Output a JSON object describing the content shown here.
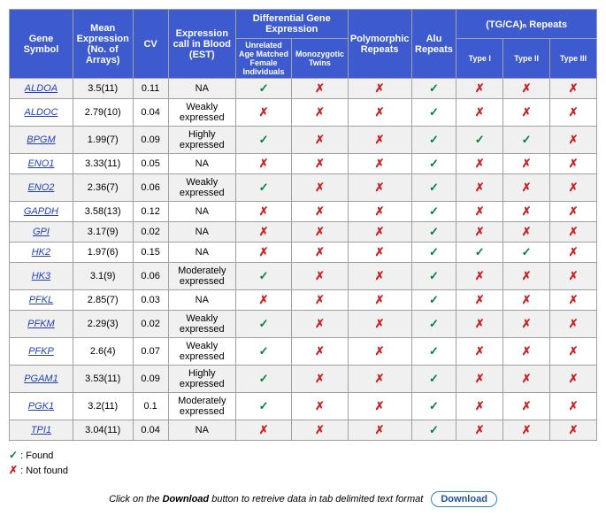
{
  "colors": {
    "header_bg": "#3d5bce",
    "header_text": "#ffffff",
    "border": "#a0a0a0",
    "row_odd": "#f0f0f0",
    "row_even": "#ffffff",
    "link": "#2040c0",
    "check": "#008040",
    "cross": "#cc2020"
  },
  "marks": {
    "found": "✓",
    "not_found": "✗"
  },
  "headers": {
    "gene": "Gene Symbol",
    "mean": "Mean Expression (No. of Arrays)",
    "cv": "CV",
    "expr_call": "Expression call in Blood (EST)",
    "diff_group": "Differential Gene Expression",
    "diff_unrelated": "Unrelated Age Matched Female Individuals",
    "diff_mono": "Monozygotic Twins",
    "poly": "Polymorphic Repeats",
    "alu": "Alu Repeats",
    "tgca_group": "(TG/CA)ₙ Repeats",
    "type1": "Type I",
    "type2": "Type II",
    "type3": "Type III"
  },
  "rows": [
    {
      "gene": "ALDOA",
      "mean": "3.5(11)",
      "cv": "0.11",
      "call": "NA",
      "d1": "y",
      "d2": "n",
      "poly": "n",
      "alu": "y",
      "t1": "n",
      "t2": "n",
      "t3": "n"
    },
    {
      "gene": "ALDOC",
      "mean": "2.79(10)",
      "cv": "0.04",
      "call": "Weakly expressed",
      "d1": "n",
      "d2": "n",
      "poly": "n",
      "alu": "y",
      "t1": "n",
      "t2": "n",
      "t3": "n"
    },
    {
      "gene": "BPGM",
      "mean": "1.99(7)",
      "cv": "0.09",
      "call": "Highly expressed",
      "d1": "y",
      "d2": "n",
      "poly": "n",
      "alu": "y",
      "t1": "y",
      "t2": "y",
      "t3": "n"
    },
    {
      "gene": "ENO1",
      "mean": "3.33(11)",
      "cv": "0.05",
      "call": "NA",
      "d1": "n",
      "d2": "n",
      "poly": "n",
      "alu": "y",
      "t1": "n",
      "t2": "n",
      "t3": "n"
    },
    {
      "gene": "ENO2",
      "mean": "2.36(7)",
      "cv": "0.06",
      "call": "Weakly expressed",
      "d1": "y",
      "d2": "n",
      "poly": "n",
      "alu": "y",
      "t1": "n",
      "t2": "n",
      "t3": "n"
    },
    {
      "gene": "GAPDH",
      "mean": "3.58(13)",
      "cv": "0.12",
      "call": "NA",
      "d1": "n",
      "d2": "n",
      "poly": "n",
      "alu": "y",
      "t1": "n",
      "t2": "n",
      "t3": "n"
    },
    {
      "gene": "GPI",
      "mean": "3.17(9)",
      "cv": "0.02",
      "call": "NA",
      "d1": "n",
      "d2": "n",
      "poly": "n",
      "alu": "y",
      "t1": "n",
      "t2": "n",
      "t3": "n"
    },
    {
      "gene": "HK2",
      "mean": "1.97(6)",
      "cv": "0.15",
      "call": "NA",
      "d1": "n",
      "d2": "n",
      "poly": "n",
      "alu": "y",
      "t1": "y",
      "t2": "y",
      "t3": "n"
    },
    {
      "gene": "HK3",
      "mean": "3.1(9)",
      "cv": "0.06",
      "call": "Moderately expressed",
      "d1": "y",
      "d2": "n",
      "poly": "n",
      "alu": "y",
      "t1": "n",
      "t2": "n",
      "t3": "n"
    },
    {
      "gene": "PFKL",
      "mean": "2.85(7)",
      "cv": "0.03",
      "call": "NA",
      "d1": "n",
      "d2": "n",
      "poly": "n",
      "alu": "y",
      "t1": "n",
      "t2": "n",
      "t3": "n"
    },
    {
      "gene": "PFKM",
      "mean": "2.29(3)",
      "cv": "0.02",
      "call": "Weakly expressed",
      "d1": "y",
      "d2": "n",
      "poly": "n",
      "alu": "y",
      "t1": "n",
      "t2": "n",
      "t3": "n"
    },
    {
      "gene": "PFKP",
      "mean": "2.6(4)",
      "cv": "0.07",
      "call": "Weakly expressed",
      "d1": "y",
      "d2": "n",
      "poly": "n",
      "alu": "y",
      "t1": "n",
      "t2": "n",
      "t3": "n"
    },
    {
      "gene": "PGAM1",
      "mean": "3.53(11)",
      "cv": "0.09",
      "call": "Highly expressed",
      "d1": "y",
      "d2": "n",
      "poly": "n",
      "alu": "y",
      "t1": "n",
      "t2": "n",
      "t3": "n"
    },
    {
      "gene": "PGK1",
      "mean": "3.2(11)",
      "cv": "0.1",
      "call": "Moderately expressed",
      "d1": "y",
      "d2": "n",
      "poly": "n",
      "alu": "y",
      "t1": "n",
      "t2": "n",
      "t3": "n"
    },
    {
      "gene": "TPI1",
      "mean": "3.04(11)",
      "cv": "0.04",
      "call": "NA",
      "d1": "n",
      "d2": "n",
      "poly": "n",
      "alu": "y",
      "t1": "n",
      "t2": "n",
      "t3": "n"
    }
  ],
  "legend": {
    "found_label": ": Found",
    "notfound_label": ": Not found"
  },
  "footer": {
    "pre": "Click on the ",
    "bold": "Download",
    "post": " button to retreive data in tab delimited text format",
    "button": "Download"
  },
  "col_widths": {
    "gene": "68px",
    "mean": "64px",
    "cv": "38px",
    "call": "72px",
    "d1": "60px",
    "d2": "60px",
    "poly": "68px",
    "alu": "48px",
    "t1": "50px",
    "t2": "50px",
    "t3": "50px"
  }
}
